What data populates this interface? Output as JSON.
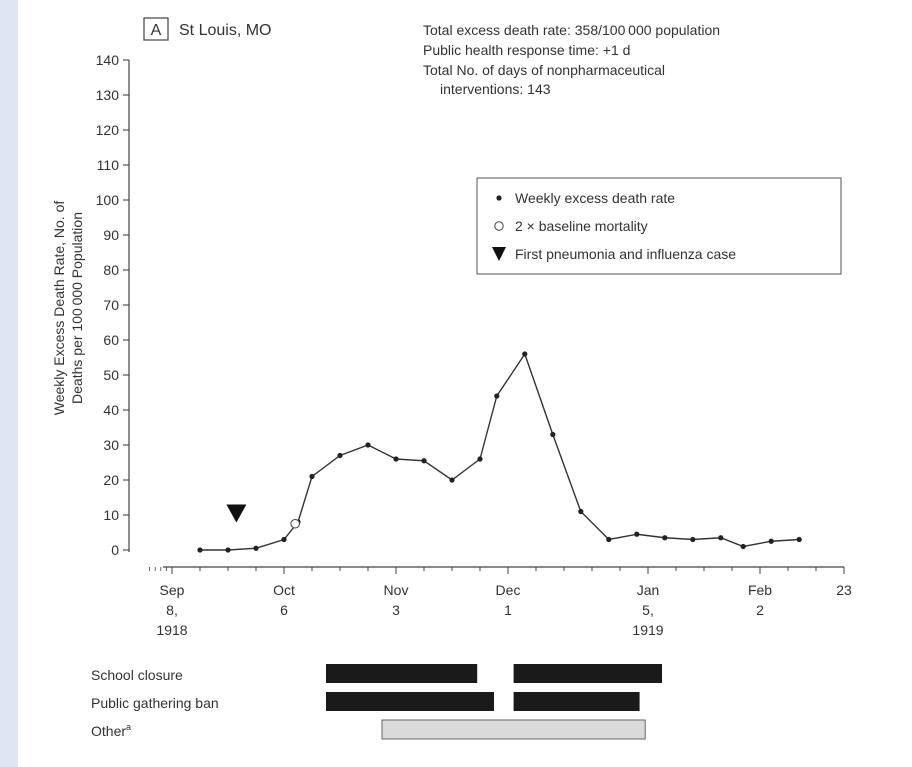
{
  "panel": {
    "letter": "A",
    "city": "St Louis, MO"
  },
  "stats": {
    "line1": "Total excess death rate: 358/100 000 population",
    "line2": "Public health response time: +1 d",
    "line3a": "Total No. of days of nonpharmaceutical",
    "line3b": "interventions: 143"
  },
  "chart_data": {
    "type": "line",
    "ylabel_line1": "Weekly Excess Death Rate, No. of",
    "ylabel_line2": "Deaths per 100 000 Population",
    "ylim": [
      0,
      140
    ],
    "yticks": [
      0,
      10,
      20,
      30,
      40,
      50,
      60,
      70,
      80,
      90,
      100,
      110,
      120,
      130,
      140
    ],
    "xticks": [
      {
        "week": 0,
        "lines": [
          "Sep",
          "8,",
          "1918"
        ]
      },
      {
        "week": 4,
        "lines": [
          "Oct",
          "6"
        ]
      },
      {
        "week": 8,
        "lines": [
          "Nov",
          "3"
        ]
      },
      {
        "week": 12,
        "lines": [
          "Dec",
          "1"
        ]
      },
      {
        "week": 17,
        "lines": [
          "Jan",
          "5,",
          "1919"
        ]
      },
      {
        "week": 21,
        "lines": [
          "Feb",
          "2"
        ]
      },
      {
        "week": 24,
        "lines": [
          "23"
        ]
      }
    ],
    "series": [
      {
        "points": [
          [
            1,
            0
          ],
          [
            2,
            0
          ],
          [
            3,
            0.5
          ],
          [
            4,
            3
          ],
          [
            4.5,
            8
          ],
          [
            5,
            21
          ],
          [
            6,
            27
          ],
          [
            7,
            30
          ],
          [
            8,
            26
          ],
          [
            9,
            25.5
          ],
          [
            10,
            20
          ],
          [
            11,
            26
          ],
          [
            11.6,
            44
          ],
          [
            12.6,
            56
          ],
          [
            13.6,
            33
          ],
          [
            14.6,
            11
          ],
          [
            15.6,
            3
          ],
          [
            16.6,
            4.5
          ],
          [
            17.6,
            3.5
          ],
          [
            18.6,
            3
          ],
          [
            19.6,
            3.5
          ],
          [
            20.4,
            1
          ],
          [
            21.4,
            2.5
          ],
          [
            22.4,
            3
          ]
        ]
      }
    ],
    "baseline_marker": [
      4.4,
      7.5
    ],
    "first_case_marker": [
      2.3,
      5
    ],
    "legend": {
      "position": "top-right",
      "items": [
        {
          "symbol": "dot",
          "label": "Weekly excess death rate"
        },
        {
          "symbol": "circle",
          "label": "2 × baseline mortality"
        },
        {
          "symbol": "triangle",
          "label": "First pneumonia and influenza case"
        }
      ]
    },
    "interventions": [
      {
        "label": "School closure",
        "periods": [
          [
            5.5,
            10.9
          ],
          [
            12.2,
            17.5
          ]
        ],
        "kind": "dark"
      },
      {
        "label": "Public gathering ban",
        "periods": [
          [
            5.5,
            11.5
          ],
          [
            12.2,
            16.7
          ]
        ],
        "kind": "dark"
      },
      {
        "label": "Other",
        "superscript": "a",
        "periods": [
          [
            7.5,
            16.9
          ]
        ],
        "kind": "light"
      }
    ],
    "colors": {
      "line": "#333333",
      "dark_bar": "#1a1a1a",
      "light_bar": "#dadada"
    }
  }
}
